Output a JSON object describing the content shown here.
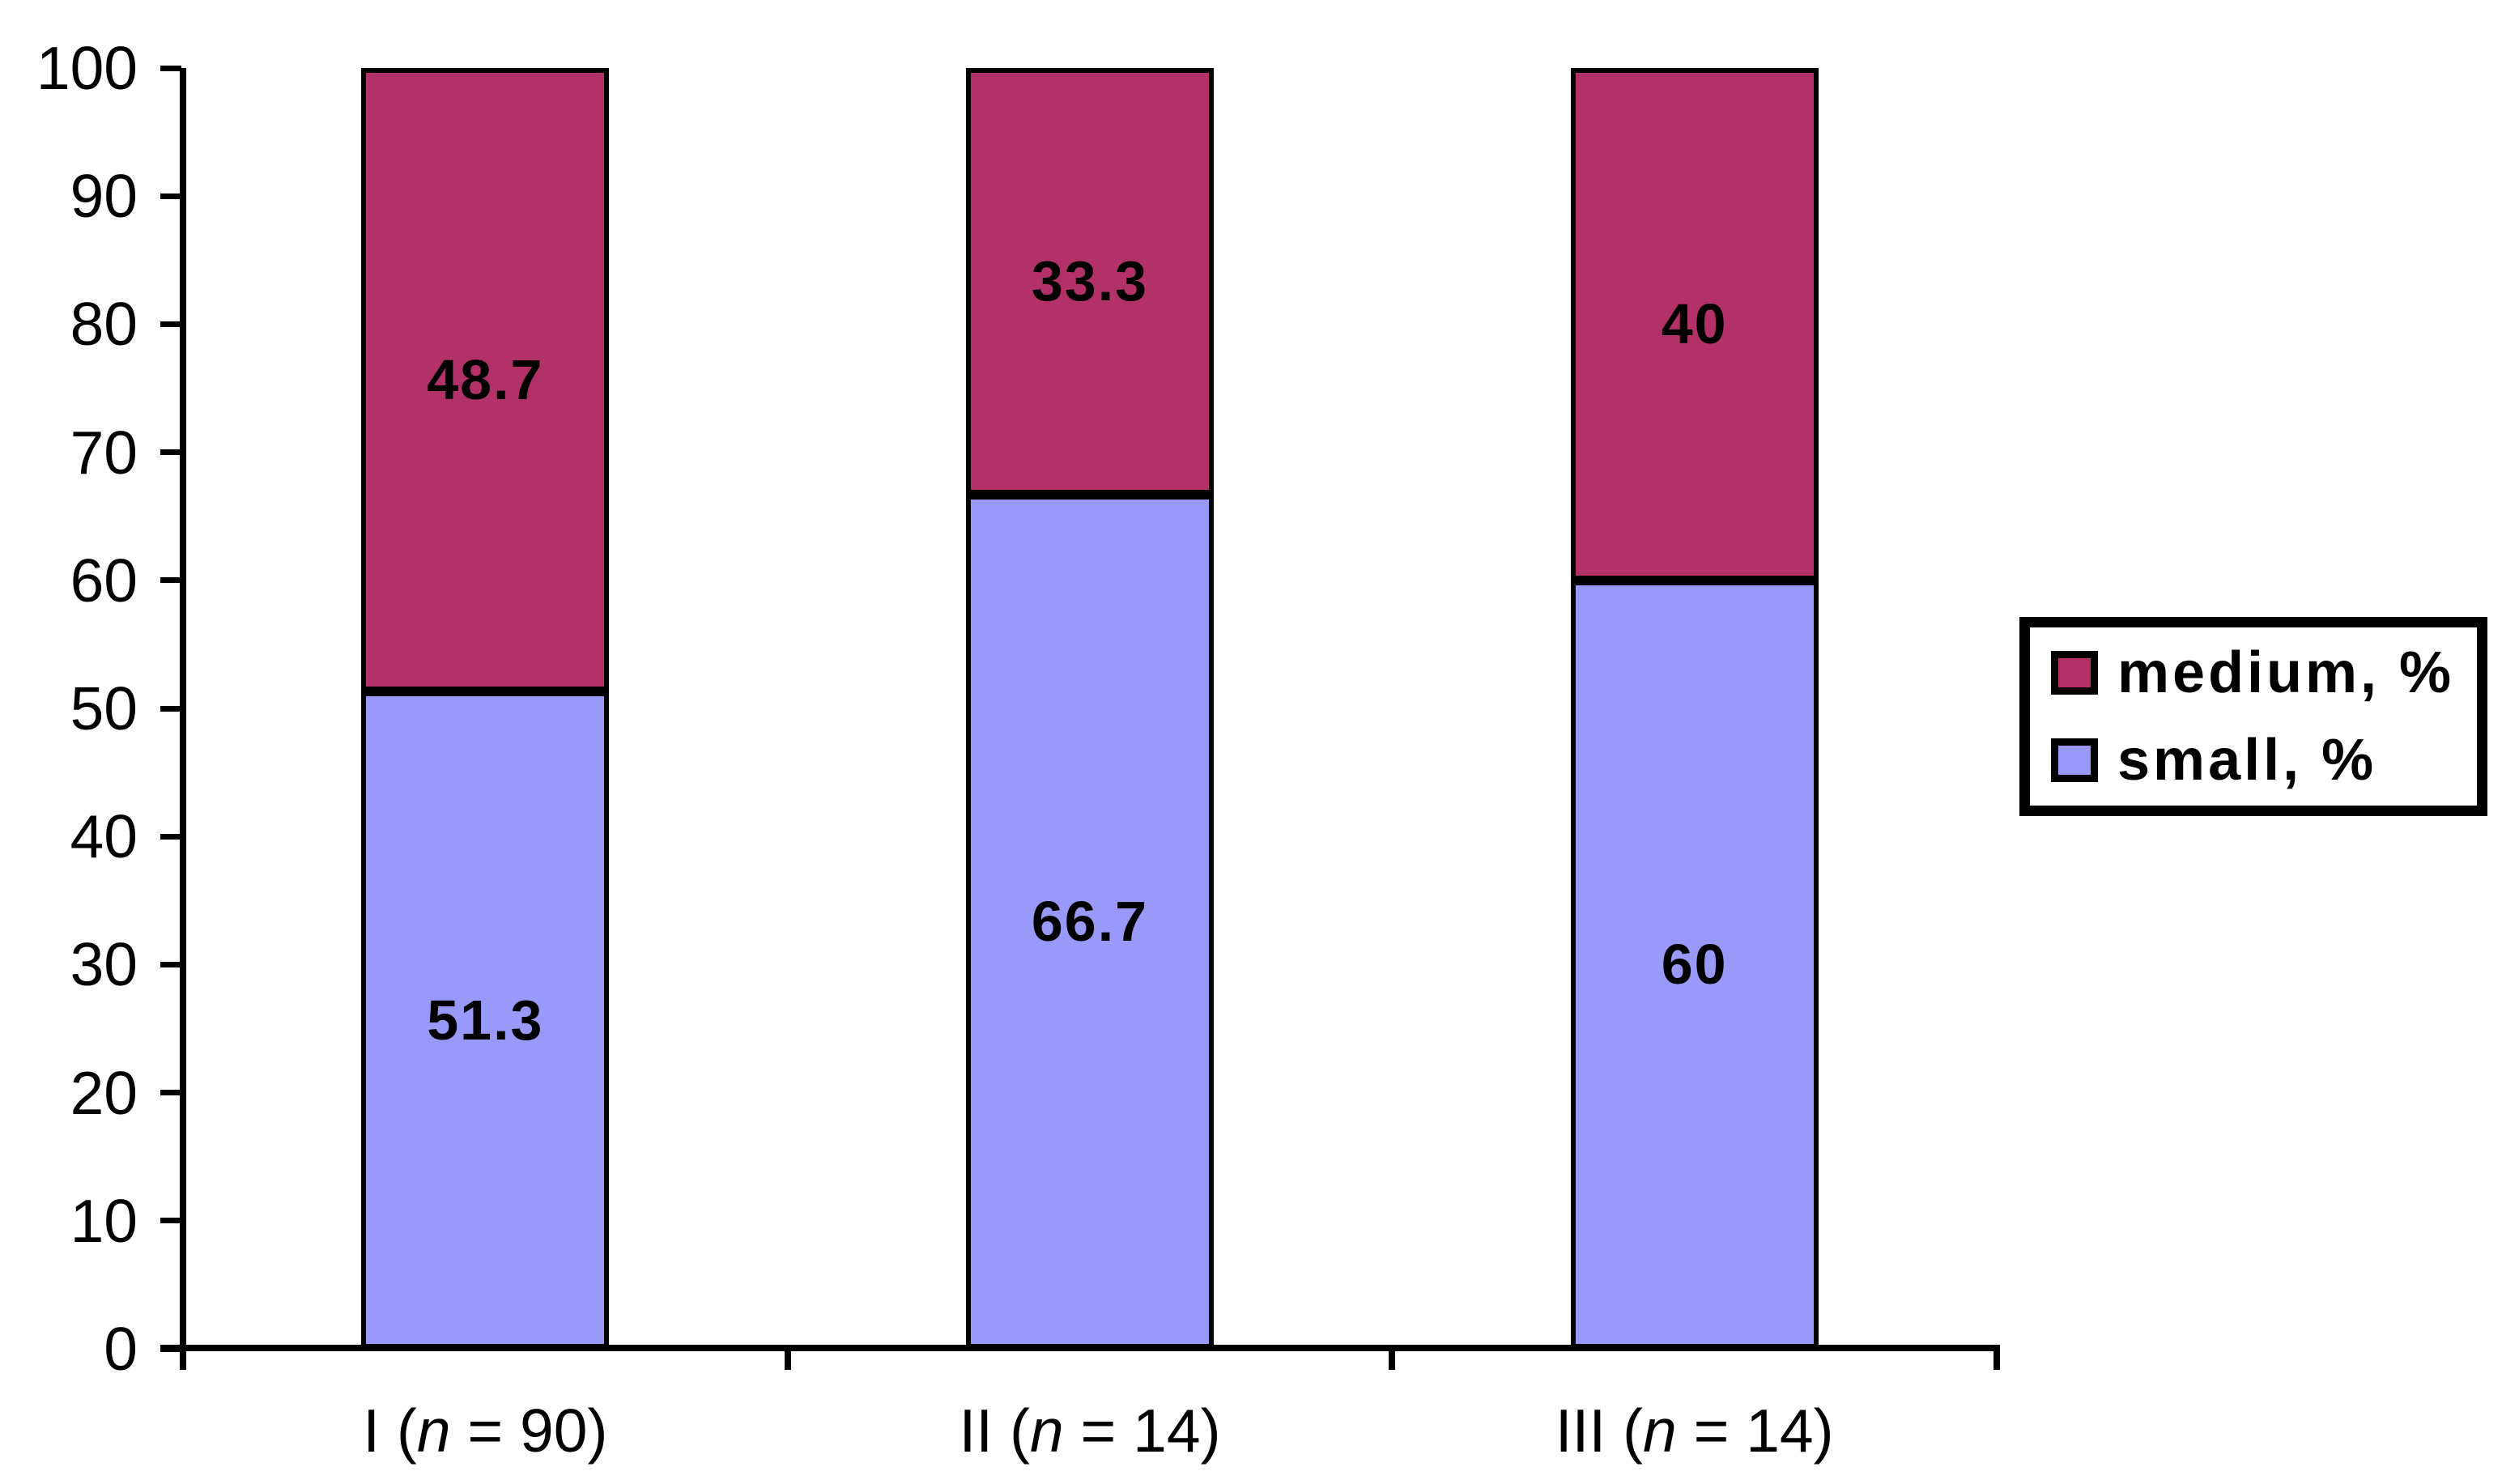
{
  "chart_data": {
    "type": "bar",
    "stacked": true,
    "title": "",
    "xlabel": "",
    "ylabel": "",
    "categories": [
      "I (n = 90)",
      "II (n = 14)",
      "III (n = 14)"
    ],
    "series": [
      {
        "name": "small, %",
        "color": "#9999FA",
        "values": [
          51.3,
          66.7,
          60
        ],
        "labels": [
          "51.3",
          "66.7",
          "60"
        ]
      },
      {
        "name": "medium, %",
        "color": "#B23169",
        "values": [
          48.7,
          33.3,
          40
        ],
        "labels": [
          "48.7",
          "33.3",
          "40"
        ]
      }
    ],
    "ylim": [
      0,
      100
    ],
    "yticks": [
      0,
      10,
      20,
      30,
      40,
      50,
      60,
      70,
      80,
      90,
      100
    ],
    "grid": false,
    "legend": {
      "position": "right",
      "entries": [
        {
          "label": "medium, %",
          "series": "medium, %"
        },
        {
          "label": "small, %",
          "series": "small, %"
        }
      ]
    },
    "axis_color": "#000000",
    "value_label_color": "#000000",
    "background": "#FFFFFF"
  }
}
